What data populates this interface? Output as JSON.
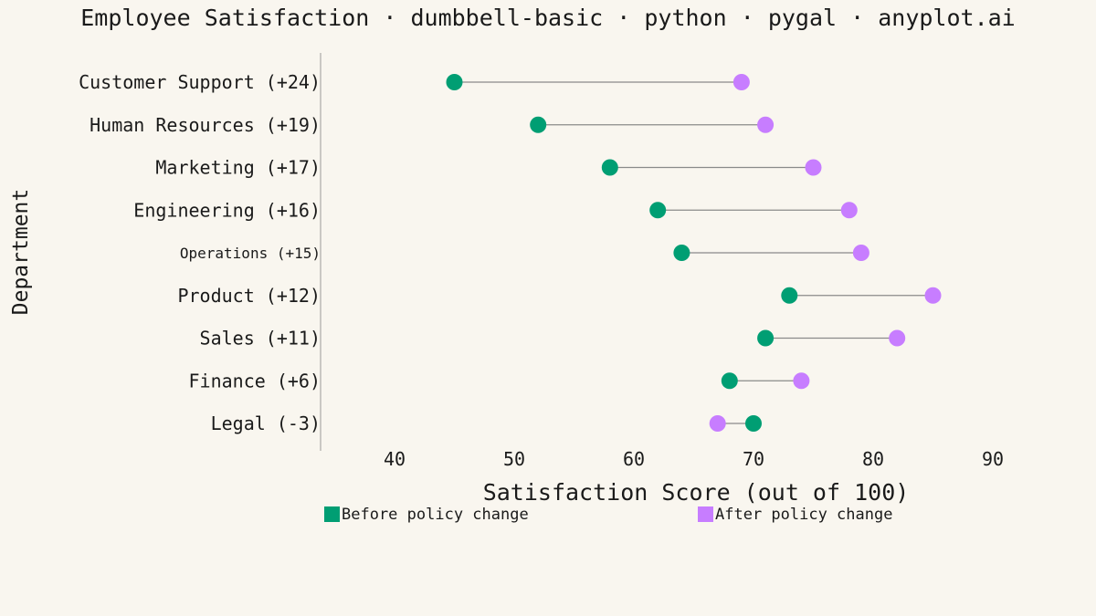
{
  "chart_data": {
    "type": "dumbbell",
    "title": "Employee Satisfaction · dumbbell-basic · python · pygal · anyplot.ai",
    "xlabel": "Satisfaction Score (out of 100)",
    "ylabel": "Department",
    "xlim": [
      35,
      95
    ],
    "xticks": [
      40,
      50,
      60,
      70,
      80,
      90
    ],
    "grid": false,
    "legend_position": "bottom",
    "categories": [
      "Customer Support (+24)",
      "Human Resources (+19)",
      "Marketing (+17)",
      "Engineering (+16)",
      "Operations (+15)",
      "Product (+12)",
      "Sales (+11)",
      "Finance (+6)",
      "Legal (-3)"
    ],
    "series": [
      {
        "name": "Before policy change",
        "color": "#009e73",
        "values": [
          45,
          52,
          58,
          62,
          64,
          73,
          71,
          68,
          70
        ]
      },
      {
        "name": "After policy change",
        "color": "#c77dff",
        "values": [
          69,
          71,
          75,
          78,
          79,
          85,
          82,
          74,
          67
        ]
      }
    ],
    "connector_color": "#8a8a8a"
  }
}
